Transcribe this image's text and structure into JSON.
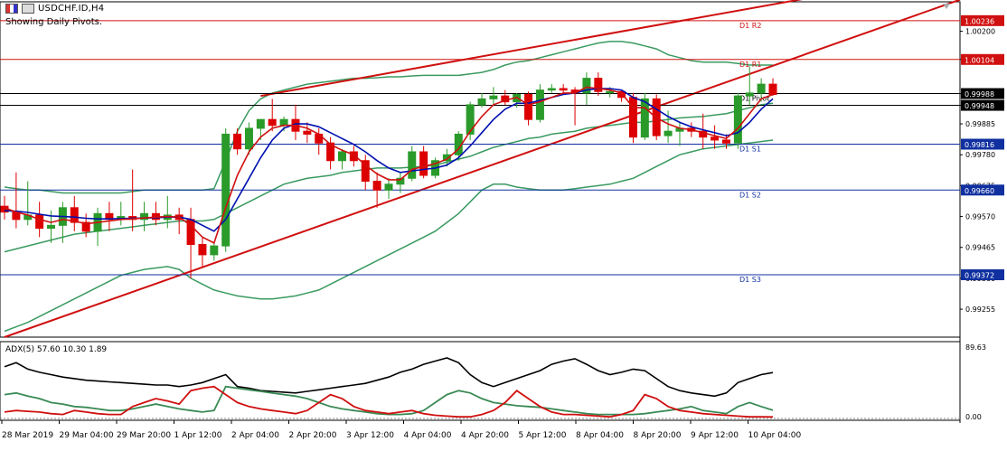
{
  "header": {
    "symbol_title": "USDCHF.ID,H4",
    "subtitle": "Showing Daily Pivots."
  },
  "colors": {
    "bull": "#2a9a2a",
    "bear": "#dd0000",
    "ma_fast": "#d01010",
    "ma_slow": "#0010b0",
    "bands": "#3a9a60",
    "trendline": "#d01010",
    "pivot_red": "#d01010",
    "pivot_blue": "#1030a0",
    "pivot_black": "#000000",
    "adx_main": "#000000",
    "adx_plus": "#3a8a55",
    "adx_minus": "#d01010"
  },
  "chart_data": [
    {
      "type": "candlestick",
      "title": "USDCHF.ID,H4",
      "ylim": [
        0.9916,
        1.003
      ],
      "y_ticks": [
        "1.00200",
        "1.00104",
        "0.99988",
        "0.99948",
        "0.99885",
        "0.99780",
        "0.99675",
        "0.99570",
        "0.99465",
        "0.99360",
        "0.99255"
      ],
      "x_ticks": [
        "28 Mar 2019",
        "29 Mar 04:00",
        "29 Mar 20:00",
        "1 Apr 12:00",
        "2 Apr 04:00",
        "2 Apr 20:00",
        "3 Apr 12:00",
        "4 Apr 04:00",
        "4 Apr 20:00",
        "5 Apr 12:00",
        "8 Apr 04:00",
        "8 Apr 20:00",
        "9 Apr 12:00",
        "10 Apr 04:00"
      ],
      "price_labels": [
        {
          "value": 1.00236,
          "text": "1.00236",
          "color": "red"
        },
        {
          "value": 1.00104,
          "text": "1.00104",
          "color": "red"
        },
        {
          "value": 0.99988,
          "text": "0.99988",
          "color": "black"
        },
        {
          "value": 0.99948,
          "text": "0.99948",
          "color": "black"
        },
        {
          "value": 0.99816,
          "text": "0.99816",
          "color": "blue"
        },
        {
          "value": 0.9966,
          "text": "0.99660",
          "color": "blue"
        },
        {
          "value": 0.99372,
          "text": "0.99372",
          "color": "blue"
        }
      ],
      "pivots": [
        {
          "name": "D1 R2",
          "value": 1.00236,
          "color": "red"
        },
        {
          "name": "D1 R1",
          "value": 1.00104,
          "color": "red"
        },
        {
          "name": "D1 Pivot",
          "value": 0.99988,
          "color": "black"
        },
        {
          "name": "D1 S1",
          "value": 0.99816,
          "color": "blue"
        },
        {
          "name": "D1 S2",
          "value": 0.9966,
          "color": "blue"
        },
        {
          "name": "D1 S3",
          "value": 0.99372,
          "color": "blue"
        }
      ],
      "extra_lines": [
        {
          "value": 0.99948,
          "color": "black"
        }
      ],
      "candles": [
        {
          "o": 0.99605,
          "h": 0.9964,
          "l": 0.9956,
          "c": 0.99585
        },
        {
          "o": 0.99585,
          "h": 0.9972,
          "l": 0.9953,
          "c": 0.9956
        },
        {
          "o": 0.9956,
          "h": 0.9969,
          "l": 0.9954,
          "c": 0.99575
        },
        {
          "o": 0.99575,
          "h": 0.9962,
          "l": 0.995,
          "c": 0.9953
        },
        {
          "o": 0.9953,
          "h": 0.9959,
          "l": 0.9948,
          "c": 0.9954
        },
        {
          "o": 0.9954,
          "h": 0.9962,
          "l": 0.9948,
          "c": 0.996
        },
        {
          "o": 0.996,
          "h": 0.9964,
          "l": 0.9952,
          "c": 0.9955
        },
        {
          "o": 0.9955,
          "h": 0.9958,
          "l": 0.995,
          "c": 0.9952
        },
        {
          "o": 0.9952,
          "h": 0.996,
          "l": 0.9947,
          "c": 0.9958
        },
        {
          "o": 0.9958,
          "h": 0.9962,
          "l": 0.9952,
          "c": 0.9956
        },
        {
          "o": 0.9956,
          "h": 0.9962,
          "l": 0.9954,
          "c": 0.9957
        },
        {
          "o": 0.9957,
          "h": 0.9973,
          "l": 0.9952,
          "c": 0.9956
        },
        {
          "o": 0.9956,
          "h": 0.9962,
          "l": 0.9952,
          "c": 0.9958
        },
        {
          "o": 0.9958,
          "h": 0.9962,
          "l": 0.9954,
          "c": 0.9956
        },
        {
          "o": 0.9956,
          "h": 0.9964,
          "l": 0.9953,
          "c": 0.99575
        },
        {
          "o": 0.99575,
          "h": 0.996,
          "l": 0.9951,
          "c": 0.9956
        },
        {
          "o": 0.9956,
          "h": 0.996,
          "l": 0.9936,
          "c": 0.99475
        },
        {
          "o": 0.99475,
          "h": 0.995,
          "l": 0.994,
          "c": 0.9944
        },
        {
          "o": 0.9944,
          "h": 0.9948,
          "l": 0.9942,
          "c": 0.9947
        },
        {
          "o": 0.9947,
          "h": 0.9987,
          "l": 0.9945,
          "c": 0.9985
        },
        {
          "o": 0.9985,
          "h": 0.9987,
          "l": 0.9978,
          "c": 0.998
        },
        {
          "o": 0.998,
          "h": 0.9989,
          "l": 0.9978,
          "c": 0.9987
        },
        {
          "o": 0.9987,
          "h": 0.999,
          "l": 0.9983,
          "c": 0.999
        },
        {
          "o": 0.999,
          "h": 0.9997,
          "l": 0.9986,
          "c": 0.9988
        },
        {
          "o": 0.9988,
          "h": 0.9991,
          "l": 0.9986,
          "c": 0.999
        },
        {
          "o": 0.999,
          "h": 0.9995,
          "l": 0.9983,
          "c": 0.9986
        },
        {
          "o": 0.9986,
          "h": 0.9989,
          "l": 0.9982,
          "c": 0.9985
        },
        {
          "o": 0.9985,
          "h": 0.9987,
          "l": 0.9978,
          "c": 0.9982
        },
        {
          "o": 0.9982,
          "h": 0.9984,
          "l": 0.9973,
          "c": 0.9976
        },
        {
          "o": 0.9976,
          "h": 0.998,
          "l": 0.9973,
          "c": 0.9979
        },
        {
          "o": 0.9979,
          "h": 0.9981,
          "l": 0.9974,
          "c": 0.9976
        },
        {
          "o": 0.9976,
          "h": 0.9978,
          "l": 0.9966,
          "c": 0.9969
        },
        {
          "o": 0.9969,
          "h": 0.9972,
          "l": 0.996,
          "c": 0.9966
        },
        {
          "o": 0.9966,
          "h": 0.997,
          "l": 0.9963,
          "c": 0.9968
        },
        {
          "o": 0.9968,
          "h": 0.9972,
          "l": 0.9965,
          "c": 0.997
        },
        {
          "o": 0.997,
          "h": 0.9981,
          "l": 0.9969,
          "c": 0.9979
        },
        {
          "o": 0.9979,
          "h": 0.9981,
          "l": 0.997,
          "c": 0.9971
        },
        {
          "o": 0.9971,
          "h": 0.9977,
          "l": 0.997,
          "c": 0.9976
        },
        {
          "o": 0.9976,
          "h": 0.998,
          "l": 0.9974,
          "c": 0.9978
        },
        {
          "o": 0.9978,
          "h": 0.9986,
          "l": 0.9976,
          "c": 0.9985
        },
        {
          "o": 0.9985,
          "h": 0.9996,
          "l": 0.9983,
          "c": 0.9995
        },
        {
          "o": 0.9995,
          "h": 0.9999,
          "l": 0.9994,
          "c": 0.9997
        },
        {
          "o": 0.9997,
          "h": 1.0001,
          "l": 0.9995,
          "c": 0.9998
        },
        {
          "o": 0.9998,
          "h": 1.0,
          "l": 0.9995,
          "c": 0.9996
        },
        {
          "o": 0.9996,
          "h": 0.9999,
          "l": 0.9994,
          "c": 0.99985
        },
        {
          "o": 0.99985,
          "h": 0.99995,
          "l": 0.9988,
          "c": 0.999
        },
        {
          "o": 0.999,
          "h": 1.0002,
          "l": 0.9989,
          "c": 1.0
        },
        {
          "o": 1.0,
          "h": 1.0002,
          "l": 0.9999,
          "c": 1.00005
        },
        {
          "o": 1.00005,
          "h": 1.0002,
          "l": 0.9999,
          "c": 1.0
        },
        {
          "o": 1.0,
          "h": 1.0001,
          "l": 0.9988,
          "c": 0.9999
        },
        {
          "o": 0.9999,
          "h": 1.0006,
          "l": 0.9995,
          "c": 1.0004
        },
        {
          "o": 1.0004,
          "h": 1.0006,
          "l": 0.9998,
          "c": 0.99995
        },
        {
          "o": 0.99995,
          "h": 1.0001,
          "l": 0.99975,
          "c": 0.99995
        },
        {
          "o": 0.99995,
          "h": 1.0,
          "l": 0.9996,
          "c": 0.99975
        },
        {
          "o": 0.99975,
          "h": 0.9999,
          "l": 0.9982,
          "c": 0.9984
        },
        {
          "o": 0.9984,
          "h": 0.9999,
          "l": 0.9983,
          "c": 0.9997
        },
        {
          "o": 0.9997,
          "h": 0.99985,
          "l": 0.9983,
          "c": 0.99845
        },
        {
          "o": 0.99845,
          "h": 0.9993,
          "l": 0.9982,
          "c": 0.9986
        },
        {
          "o": 0.9986,
          "h": 0.9989,
          "l": 0.9981,
          "c": 0.9987
        },
        {
          "o": 0.9987,
          "h": 0.9989,
          "l": 0.9984,
          "c": 0.9986
        },
        {
          "o": 0.9986,
          "h": 0.9992,
          "l": 0.998,
          "c": 0.9984
        },
        {
          "o": 0.9984,
          "h": 0.9988,
          "l": 0.998,
          "c": 0.9983
        },
        {
          "o": 0.9983,
          "h": 0.9985,
          "l": 0.998,
          "c": 0.9982
        },
        {
          "o": 0.9982,
          "h": 0.9999,
          "l": 0.998,
          "c": 0.9998
        },
        {
          "o": 0.9998,
          "h": 1.0008,
          "l": 0.9995,
          "c": 0.9999
        },
        {
          "o": 0.9999,
          "h": 1.0004,
          "l": 0.9996,
          "c": 1.0002
        },
        {
          "o": 1.0002,
          "h": 1.0004,
          "l": 0.9998,
          "c": 0.99985
        }
      ],
      "ma_fast": [
        0.996,
        0.99585,
        0.99575,
        0.9956,
        0.9955,
        0.9956,
        0.99555,
        0.99545,
        0.9955,
        0.99555,
        0.9956,
        0.99562,
        0.99565,
        0.99568,
        0.9957,
        0.99568,
        0.9954,
        0.995,
        0.9948,
        0.996,
        0.9971,
        0.9979,
        0.9984,
        0.9987,
        0.9988,
        0.9988,
        0.9987,
        0.9985,
        0.99815,
        0.99795,
        0.9978,
        0.99745,
        0.99715,
        0.99695,
        0.99695,
        0.9973,
        0.9974,
        0.9975,
        0.99765,
        0.998,
        0.9986,
        0.9991,
        0.9995,
        0.99965,
        0.99975,
        0.9995,
        0.9996,
        0.99975,
        0.9999,
        0.9999,
        1.0001,
        1.00005,
        1.0,
        0.9999,
        0.9994,
        0.9994,
        0.99905,
        0.99885,
        0.9987,
        0.99865,
        0.99855,
        0.99845,
        0.99835,
        0.9987,
        0.9992,
        0.9997,
        0.99985
      ],
      "ma_slow": [
        0.9959,
        0.99588,
        0.99584,
        0.99578,
        0.99572,
        0.9957,
        0.99568,
        0.99564,
        0.99562,
        0.99562,
        0.99563,
        0.99564,
        0.99565,
        0.99566,
        0.99568,
        0.99568,
        0.9956,
        0.9954,
        0.9952,
        0.9956,
        0.9963,
        0.997,
        0.9977,
        0.9983,
        0.9987,
        0.99885,
        0.99885,
        0.99875,
        0.99855,
        0.99835,
        0.99815,
        0.9979,
        0.9976,
        0.99735,
        0.9972,
        0.99725,
        0.9973,
        0.99735,
        0.99745,
        0.9977,
        0.9981,
        0.99855,
        0.999,
        0.99935,
        0.99955,
        0.99955,
        0.99965,
        0.99975,
        0.99985,
        0.9999,
        1.0,
        1.00005,
        1.00005,
        1.0,
        0.99975,
        0.9996,
        0.99935,
        0.9991,
        0.9989,
        0.99875,
        0.99865,
        0.99855,
        0.99845,
        0.99855,
        0.9989,
        0.99935,
        0.9997
      ],
      "band_upper": [
        0.9967,
        0.99665,
        0.9966,
        0.9966,
        0.99655,
        0.9965,
        0.9965,
        0.9965,
        0.9965,
        0.9965,
        0.9965,
        0.99655,
        0.9966,
        0.9966,
        0.9966,
        0.9966,
        0.9966,
        0.9966,
        0.99665,
        0.9976,
        0.9986,
        0.9993,
        0.9997,
        0.9999,
        1.0,
        1.0001,
        1.0002,
        1.00025,
        1.0003,
        1.00035,
        1.0004,
        1.0004,
        1.00042,
        1.00045,
        1.00045,
        1.00048,
        1.0005,
        1.0005,
        1.0005,
        1.0005,
        1.00055,
        1.0006,
        1.0007,
        1.00085,
        1.00095,
        1.001,
        1.0011,
        1.0012,
        1.0013,
        1.0014,
        1.0015,
        1.0016,
        1.00165,
        1.00165,
        1.0016,
        1.0015,
        1.0014,
        1.0012,
        1.0011,
        1.001,
        1.00095,
        1.00095,
        1.00095,
        1.0009,
        1.00085,
        1.00085,
        1.00085
      ],
      "band_middle": [
        0.9945,
        0.9946,
        0.9947,
        0.9948,
        0.9949,
        0.995,
        0.9951,
        0.99515,
        0.9952,
        0.99525,
        0.9953,
        0.99535,
        0.9954,
        0.99545,
        0.9955,
        0.99555,
        0.99555,
        0.99555,
        0.9956,
        0.9958,
        0.996,
        0.9962,
        0.9964,
        0.9966,
        0.9968,
        0.9969,
        0.997,
        0.99705,
        0.9971,
        0.9972,
        0.99725,
        0.9973,
        0.99735,
        0.99735,
        0.99735,
        0.99738,
        0.9974,
        0.99745,
        0.99755,
        0.99765,
        0.99775,
        0.9979,
        0.99805,
        0.99815,
        0.99825,
        0.99835,
        0.9984,
        0.9985,
        0.99855,
        0.9986,
        0.9987,
        0.99875,
        0.9988,
        0.99885,
        0.9989,
        0.9989,
        0.99895,
        0.999,
        0.99905,
        0.99908,
        0.9991,
        0.99915,
        0.9992,
        0.9993,
        0.9994,
        0.9995,
        0.99955
      ],
      "band_lower": [
        0.9918,
        0.99195,
        0.9921,
        0.9923,
        0.9925,
        0.9927,
        0.9929,
        0.9931,
        0.9933,
        0.9935,
        0.9937,
        0.9938,
        0.9939,
        0.99395,
        0.994,
        0.9939,
        0.9936,
        0.9934,
        0.9932,
        0.9931,
        0.993,
        0.99295,
        0.9929,
        0.9929,
        0.99295,
        0.993,
        0.9931,
        0.9932,
        0.9934,
        0.9936,
        0.9938,
        0.994,
        0.9942,
        0.9944,
        0.9946,
        0.9948,
        0.995,
        0.9952,
        0.9955,
        0.9958,
        0.9962,
        0.9966,
        0.9968,
        0.9968,
        0.9967,
        0.99665,
        0.9966,
        0.9966,
        0.9966,
        0.99665,
        0.9967,
        0.99675,
        0.9968,
        0.9969,
        0.997,
        0.9972,
        0.9974,
        0.9976,
        0.9978,
        0.9979,
        0.998,
        0.99805,
        0.9981,
        0.99815,
        0.9982,
        0.99825,
        0.9983
      ],
      "trendlines": [
        {
          "from": {
            "x": 0,
            "y": 0.9916
          },
          "to": {
            "x": 66,
            "y": 1.0008
          }
        },
        {
          "from": {
            "x": 22,
            "y": 0.9998
          },
          "to": {
            "x": 66,
            "y": 1.0029
          }
        }
      ]
    },
    {
      "type": "line",
      "title": "ADX(5) 57.60 10.30 1.89",
      "ylim": [
        0,
        89.63
      ],
      "y_ticks": [
        "89.63",
        "0.00"
      ],
      "series": [
        {
          "name": "ADX",
          "values": [
            65,
            70,
            62,
            58,
            55,
            52,
            50,
            48,
            47,
            46,
            45,
            44,
            43,
            42,
            42,
            40,
            42,
            45,
            50,
            55,
            40,
            38,
            35,
            34,
            33,
            32,
            34,
            36,
            38,
            40,
            42,
            44,
            48,
            52,
            58,
            62,
            68,
            72,
            76,
            70,
            55,
            45,
            40,
            45,
            50,
            55,
            60,
            68,
            72,
            75,
            68,
            60,
            55,
            58,
            62,
            60,
            50,
            40,
            35,
            32,
            30,
            28,
            32,
            45,
            50,
            55,
            57.6
          ]
        },
        {
          "name": "+DI",
          "values": [
            30,
            32,
            28,
            25,
            20,
            18,
            15,
            14,
            12,
            10,
            10,
            12,
            15,
            18,
            15,
            12,
            10,
            8,
            10,
            40,
            38,
            36,
            34,
            32,
            30,
            28,
            25,
            20,
            15,
            12,
            10,
            8,
            6,
            5,
            5,
            6,
            10,
            20,
            30,
            35,
            32,
            25,
            20,
            18,
            16,
            15,
            14,
            12,
            10,
            8,
            6,
            5,
            5,
            5,
            5,
            6,
            8,
            10,
            12,
            15,
            10,
            8,
            6,
            15,
            20,
            15,
            10.3
          ]
        },
        {
          "name": "-DI",
          "values": [
            8,
            10,
            9,
            8,
            6,
            5,
            10,
            8,
            6,
            5,
            5,
            15,
            20,
            25,
            22,
            18,
            35,
            38,
            40,
            30,
            20,
            15,
            12,
            10,
            8,
            6,
            10,
            20,
            30,
            25,
            15,
            10,
            8,
            6,
            8,
            10,
            6,
            4,
            3,
            2,
            2,
            5,
            10,
            20,
            35,
            25,
            15,
            8,
            5,
            5,
            4,
            3,
            2,
            5,
            10,
            30,
            25,
            15,
            10,
            8,
            6,
            5,
            4,
            3,
            2,
            2,
            1.89
          ]
        }
      ]
    }
  ]
}
